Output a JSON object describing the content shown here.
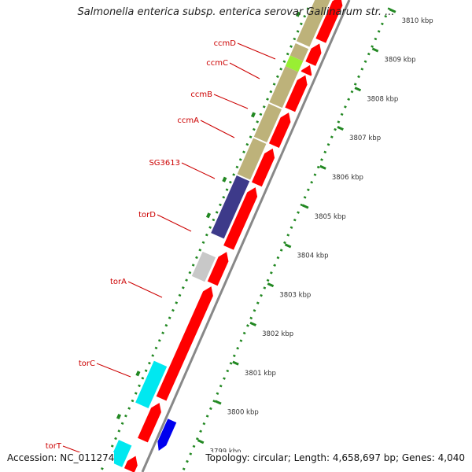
{
  "title": "Salmonella enterica subsp. enterica serovar Gallinarum str. ...",
  "footer": {
    "accession": "Accession: NC_011274",
    "summary": "Topology: circular; Length: 4,658,697 bp; Genes: 4,040"
  },
  "colors": {
    "cds_forward": "#ff0000",
    "cds_reverse": "#ff0000",
    "backbone": "#888888",
    "gc_tick": "#228822",
    "label": "#cc0000",
    "gene_khaki": "#bdb27a",
    "gene_lime": "#99ee33",
    "gene_navy": "#3d3a8a",
    "gene_grey": "#c8c8c8",
    "gene_cyan": "#00e8f0",
    "gene_blue": "#0000ee"
  },
  "kbp_ticks": [
    {
      "value": 3810,
      "label": "3810 kbp"
    },
    {
      "value": 3809,
      "label": "3809 kbp"
    },
    {
      "value": 3808,
      "label": "3808 kbp"
    },
    {
      "value": 3807,
      "label": "3807 kbp"
    },
    {
      "value": 3806,
      "label": "3806 kbp"
    },
    {
      "value": 3805,
      "label": "3805 kbp"
    },
    {
      "value": 3804,
      "label": "3804 kbp"
    },
    {
      "value": 3803,
      "label": "3803 kbp"
    },
    {
      "value": 3802,
      "label": "3802 kbp"
    },
    {
      "value": 3801,
      "label": "3801 kbp"
    },
    {
      "value": 3800,
      "label": "3800 kbp"
    },
    {
      "value": 3799,
      "label": "3799 kbp"
    }
  ],
  "genes": [
    {
      "name": "ccmD",
      "color": "gene_khaki"
    },
    {
      "name": "ccmC",
      "color": "gene_lime"
    },
    {
      "name": "ccmB",
      "color": "gene_khaki"
    },
    {
      "name": "ccmA",
      "color": "gene_khaki"
    },
    {
      "name": "SG3613",
      "color": "gene_navy"
    },
    {
      "name": "torD",
      "color": "gene_grey"
    },
    {
      "name": "torA",
      "color": "cds_forward"
    },
    {
      "name": "torC",
      "color": "gene_cyan"
    },
    {
      "name": "torT",
      "color": "gene_cyan"
    }
  ]
}
